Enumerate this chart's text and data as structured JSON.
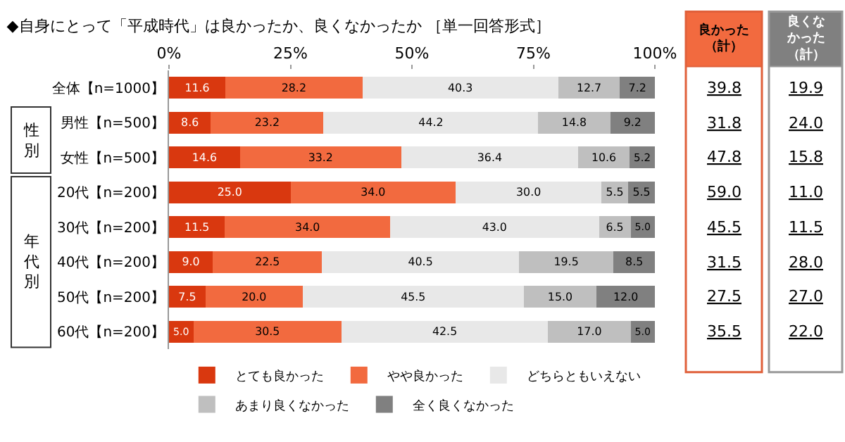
{
  "chart_data": {
    "type": "bar",
    "orientation": "horizontal",
    "stacked": true,
    "legend": "bottom",
    "title": "◆自身にとって「平成時代」は良かったか、良くなかったか ［単一回答形式］",
    "categories": [
      "全体【n=1000】",
      "男性【n=500】",
      "女性【n=500】",
      "20代【n=200】",
      "30代【n=200】",
      "40代【n=200】",
      "50代【n=200】",
      "60代【n=200】"
    ],
    "xlim": [
      0,
      100
    ],
    "xticks": [
      {
        "value": 0,
        "label": "0%"
      },
      {
        "value": 25,
        "label": "25%"
      },
      {
        "value": 50,
        "label": "50%"
      },
      {
        "value": 75,
        "label": "75%"
      },
      {
        "value": 100,
        "label": "100%"
      }
    ],
    "series": [
      {
        "name": "とても良かった",
        "color": "#d9380f",
        "values": [
          11.6,
          8.6,
          14.6,
          25.0,
          11.5,
          9.0,
          7.5,
          5.0
        ],
        "value_labels": [
          "11.6",
          "8.6",
          "14.6",
          "25.0",
          "11.5",
          "9.0",
          "7.5",
          "5.0"
        ]
      },
      {
        "name": "やや良かった",
        "color": "#f26a3f",
        "values": [
          28.2,
          23.2,
          33.2,
          34.0,
          34.0,
          22.5,
          20.0,
          30.5
        ],
        "value_labels": [
          "28.2",
          "23.2",
          "33.2",
          "34.0",
          "34.0",
          "22.5",
          "20.0",
          "30.5"
        ]
      },
      {
        "name": "どちらともいえない",
        "color": "#e8e8e8",
        "values": [
          40.3,
          44.2,
          36.4,
          30.0,
          43.0,
          40.5,
          45.5,
          42.5
        ],
        "value_labels": [
          "40.3",
          "44.2",
          "36.4",
          "30.0",
          "43.0",
          "40.5",
          "45.5",
          "42.5"
        ]
      },
      {
        "name": "あまり良くなかった",
        "color": "#bfbfbf",
        "values": [
          12.7,
          14.8,
          10.6,
          5.5,
          6.5,
          19.5,
          15.0,
          17.0
        ],
        "value_labels": [
          "12.7",
          "14.8",
          "10.6",
          "5.5",
          "6.5",
          "19.5",
          "15.0",
          "17.0"
        ]
      },
      {
        "name": "全く良くなかった",
        "color": "#808080",
        "values": [
          7.2,
          9.2,
          5.2,
          5.5,
          5.0,
          8.5,
          12.0,
          5.0
        ],
        "value_labels": [
          "7.2",
          "9.2",
          "5.2",
          "5.5",
          "5.0",
          "8.5",
          "12.0",
          "5.0"
        ]
      }
    ],
    "annotations": [
      "性別",
      "年代別",
      "良かった（計）",
      "39.8",
      "31.8",
      "47.8",
      "59.0",
      "45.5",
      "31.5",
      "27.5",
      "35.5",
      "良くなかった（計）",
      "19.9",
      "24.0",
      "15.8",
      "11.0",
      "11.5",
      "28.0",
      "27.0",
      "22.0"
    ]
  }
}
